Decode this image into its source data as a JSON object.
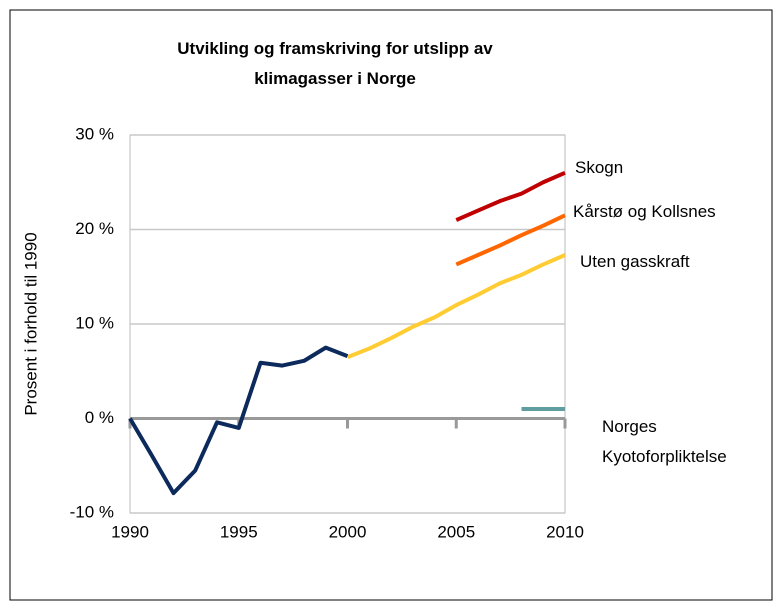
{
  "chart_data": {
    "type": "line",
    "title": "Utvikling og framskriving for utslipp av klimagasser i Norge",
    "y_label": "Prosent i forhold til 1990",
    "x": [
      1990,
      1991,
      1992,
      1993,
      1994,
      1995,
      1996,
      1997,
      1998,
      1999,
      2000,
      2001,
      2002,
      2003,
      2004,
      2005,
      2006,
      2007,
      2008,
      2009,
      2010
    ],
    "xlim": [
      1990,
      2010
    ],
    "xticks": [
      1990,
      1995,
      2000,
      2005,
      2010
    ],
    "ylim": [
      -10,
      30
    ],
    "yticks": [
      {
        "value": -10,
        "label": "-10 %"
      },
      {
        "value": 0,
        "label": "0 %"
      },
      {
        "value": 10,
        "label": "10 %"
      },
      {
        "value": 20,
        "label": "20 %"
      },
      {
        "value": 30,
        "label": "30 %"
      }
    ],
    "grid": true,
    "series": [
      {
        "name": "Skogn",
        "color": "#c00000",
        "values": [
          null,
          null,
          null,
          null,
          null,
          null,
          null,
          null,
          null,
          null,
          null,
          null,
          null,
          null,
          null,
          21,
          22,
          23,
          23.8,
          25,
          26
        ]
      },
      {
        "name": "Kårstø og Kollsnes",
        "color": "#ff6600",
        "values": [
          null,
          null,
          null,
          null,
          null,
          null,
          null,
          null,
          null,
          null,
          null,
          null,
          null,
          null,
          null,
          16.3,
          17.3,
          18.3,
          19.4,
          20.4,
          21.5
        ]
      },
      {
        "name": "Uten gasskraft",
        "color": "#ffcc33",
        "values": [
          null,
          null,
          null,
          null,
          null,
          null,
          null,
          null,
          null,
          null,
          6.5,
          7.4,
          8.5,
          9.7,
          10.7,
          12,
          13.1,
          14.3,
          15.2,
          16.3,
          17.3
        ]
      },
      {
        "name": "Norges Kyotoforpliktelse",
        "color": "#5f9ea0",
        "values": [
          null,
          null,
          null,
          null,
          null,
          null,
          null,
          null,
          null,
          null,
          null,
          null,
          null,
          null,
          null,
          null,
          null,
          null,
          1,
          1,
          1
        ]
      },
      {
        "name": null,
        "color": "#0d2a5c",
        "values": [
          0,
          -3.9,
          -7.9,
          -5.5,
          -0.4,
          -1,
          5.9,
          5.6,
          6.1,
          7.5,
          6.6,
          null,
          null,
          null,
          null,
          null,
          null,
          null,
          null,
          null,
          null
        ]
      }
    ]
  }
}
